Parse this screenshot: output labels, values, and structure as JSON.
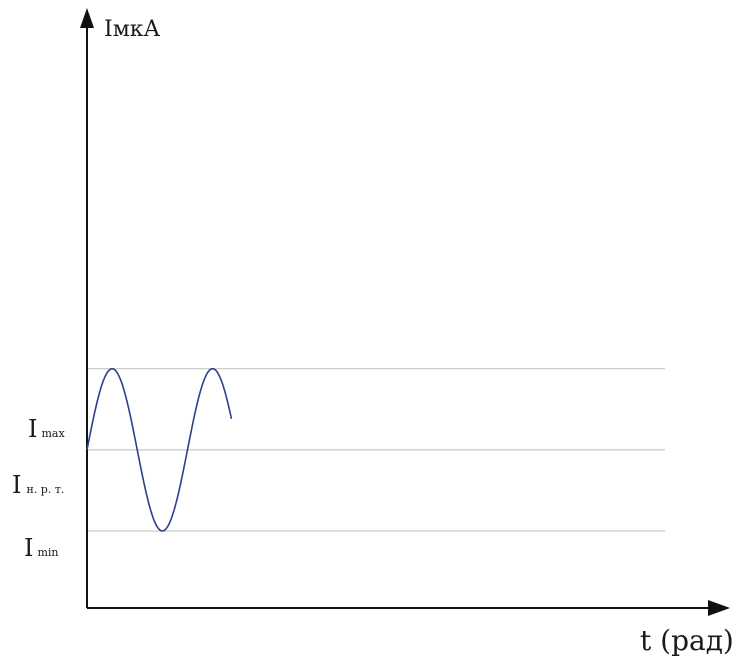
{
  "chart_data": {
    "type": "line",
    "title": "",
    "xlabel": "t (рад)",
    "ylabel": "IмкА",
    "grid": false,
    "legend": "none",
    "reference_lines": [
      {
        "key": "imax",
        "label": "I",
        "label_sub": "max",
        "value": 1
      },
      {
        "key": "inrt",
        "label": "I",
        "label_sub": "н. р. т.",
        "value": 0
      },
      {
        "key": "imin",
        "label": "I",
        "label_sub": "min",
        "value": -1
      }
    ],
    "series": [
      {
        "function": "sin",
        "amplitude": 1,
        "offset": 0,
        "x_start": 0,
        "x_end": 2.3,
        "period": 1.6
      }
    ],
    "xlim": [
      0,
      10
    ],
    "ylim": [
      -1.95,
      5.3
    ],
    "colors": {
      "axis": "#111111",
      "curve": "#2e3f8f",
      "reference": "#bdbdbd"
    }
  }
}
